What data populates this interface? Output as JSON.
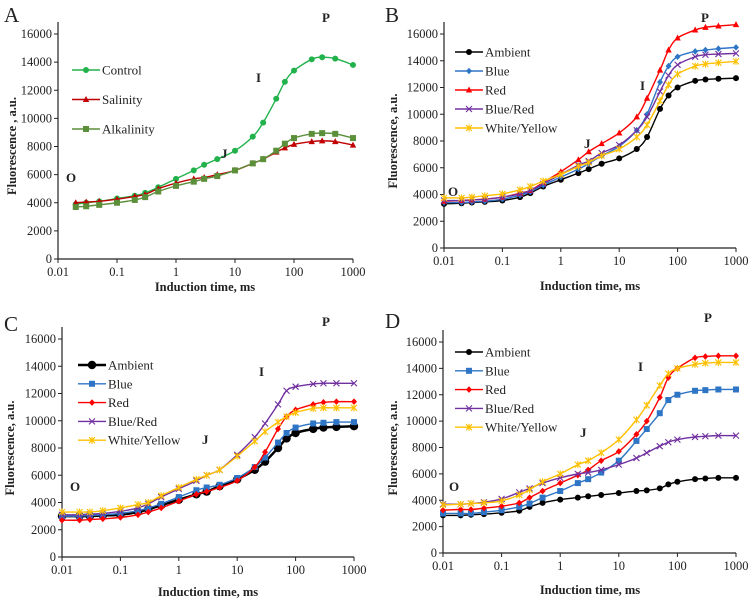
{
  "chart_data": [
    {
      "panel": "A",
      "type": "line",
      "xscale": "log",
      "xlim": [
        0.01,
        1000
      ],
      "ylim": [
        0,
        16000
      ],
      "xticks": [
        "0.01",
        "0.1",
        "1",
        "10",
        "100",
        "1000"
      ],
      "yticks": [
        "0",
        "2000",
        "4000",
        "6000",
        "8000",
        "10000",
        "12000",
        "14000",
        "16000"
      ],
      "xlabel": "Induction time, ms",
      "ylabel": "Fluorescence , a.u.",
      "phases": [
        "O",
        "J",
        "I",
        "P"
      ],
      "legend": "left",
      "x": [
        0.02,
        0.03,
        0.05,
        0.1,
        0.2,
        0.3,
        0.5,
        1,
        2,
        3,
        5,
        10,
        20,
        30,
        50,
        70,
        100,
        200,
        300,
        500,
        1000
      ],
      "series": [
        {
          "name": "Control",
          "color": "#22b24c",
          "marker": "circle",
          "values": [
            3900,
            4000,
            4100,
            4300,
            4500,
            4700,
            5100,
            5700,
            6300,
            6700,
            7100,
            7700,
            8700,
            9700,
            11400,
            12600,
            13400,
            14200,
            14350,
            14250,
            13800
          ]
        },
        {
          "name": "Salinity",
          "color": "#c00000",
          "marker": "triangle",
          "values": [
            4000,
            4050,
            4100,
            4250,
            4450,
            4600,
            5000,
            5400,
            5700,
            5800,
            6000,
            6300,
            6800,
            7100,
            7600,
            7900,
            8150,
            8350,
            8400,
            8350,
            8100
          ]
        },
        {
          "name": "Alkalinity",
          "color": "#5b8f3a",
          "marker": "square",
          "values": [
            3700,
            3750,
            3850,
            4000,
            4200,
            4400,
            4800,
            5200,
            5500,
            5700,
            5900,
            6300,
            6800,
            7100,
            7700,
            8200,
            8600,
            8900,
            8950,
            8900,
            8600
          ]
        }
      ]
    },
    {
      "panel": "B",
      "type": "line",
      "xscale": "log",
      "xlim": [
        0.01,
        1000
      ],
      "ylim": [
        0,
        16000
      ],
      "xticks": [
        "0.01",
        "0.1",
        "1",
        "10",
        "100",
        "1000"
      ],
      "yticks": [
        "0",
        "2000",
        "4000",
        "6000",
        "8000",
        "10000",
        "12000",
        "14000",
        "16000"
      ],
      "xlabel": "Induction time, ms",
      "ylabel": "Fluorescence, a.u.",
      "phases": [
        "O",
        "J",
        "I",
        "P"
      ],
      "legend": "left",
      "x": [
        0.01,
        0.02,
        0.03,
        0.05,
        0.1,
        0.2,
        0.3,
        0.5,
        1,
        2,
        3,
        5,
        10,
        20,
        30,
        50,
        70,
        100,
        200,
        300,
        500,
        1000
      ],
      "series": [
        {
          "name": "Ambient",
          "color": "#000000",
          "marker": "circle",
          "values": [
            3300,
            3350,
            3400,
            3450,
            3550,
            3800,
            4100,
            4600,
            5100,
            5600,
            5900,
            6300,
            6700,
            7400,
            8300,
            10400,
            11400,
            12000,
            12500,
            12600,
            12650,
            12700
          ]
        },
        {
          "name": "Blue",
          "color": "#2e75c6",
          "marker": "diamond",
          "values": [
            3400,
            3400,
            3450,
            3500,
            3650,
            3950,
            4200,
            4700,
            5300,
            5900,
            6300,
            6900,
            7600,
            8800,
            10000,
            12400,
            13600,
            14300,
            14700,
            14800,
            14900,
            15000
          ]
        },
        {
          "name": "Red",
          "color": "#ff0000",
          "marker": "triangle",
          "values": [
            3500,
            3550,
            3600,
            3650,
            3800,
            4100,
            4300,
            4900,
            5700,
            6600,
            7200,
            7800,
            8600,
            9800,
            11200,
            13300,
            14800,
            15700,
            16300,
            16500,
            16600,
            16700
          ]
        },
        {
          "name": "Blue/Red",
          "color": "#7030a0",
          "marker": "x",
          "values": [
            3550,
            3550,
            3600,
            3650,
            3800,
            4050,
            4300,
            4800,
            5500,
            6200,
            6500,
            7100,
            7700,
            8800,
            9800,
            11700,
            12900,
            13700,
            14300,
            14450,
            14500,
            14550
          ]
        },
        {
          "name": "White/Yellow",
          "color": "#ffc000",
          "marker": "star",
          "values": [
            3750,
            3750,
            3800,
            3900,
            4050,
            4350,
            4600,
            5000,
            5500,
            6100,
            6400,
            6900,
            7400,
            8300,
            9200,
            11000,
            12200,
            13000,
            13600,
            13750,
            13850,
            13950
          ]
        }
      ]
    },
    {
      "panel": "C",
      "type": "line",
      "xscale": "log",
      "xlim": [
        0.01,
        1000
      ],
      "ylim": [
        0,
        16000
      ],
      "xticks": [
        "0.01",
        "0.1",
        "1",
        "10",
        "100",
        "1000"
      ],
      "yticks": [
        "0",
        "2000",
        "4000",
        "6000",
        "8000",
        "10000",
        "12000",
        "14000",
        "16000"
      ],
      "xlabel": "Induction time, ms",
      "ylabel": "Fluorescence, a.u.",
      "phases": [
        "O",
        "J",
        "I",
        "P"
      ],
      "legend": "left",
      "x": [
        0.01,
        0.02,
        0.03,
        0.05,
        0.1,
        0.2,
        0.3,
        0.5,
        1,
        2,
        3,
        5,
        10,
        20,
        30,
        50,
        70,
        100,
        200,
        300,
        500,
        1000
      ],
      "series": [
        {
          "name": "Ambient",
          "color": "#000000",
          "marker": "bigcircle",
          "values": [
            3000,
            3000,
            3000,
            3050,
            3100,
            3300,
            3500,
            3800,
            4200,
            4600,
            4800,
            5200,
            5700,
            6400,
            7000,
            8000,
            8700,
            9100,
            9400,
            9500,
            9550,
            9600
          ]
        },
        {
          "name": "Blue",
          "color": "#2e75c6",
          "marker": "square",
          "values": [
            3000,
            3000,
            3050,
            3100,
            3200,
            3400,
            3600,
            3900,
            4400,
            4900,
            5100,
            5300,
            5800,
            6600,
            7300,
            8400,
            9100,
            9500,
            9800,
            9850,
            9900,
            9900
          ]
        },
        {
          "name": "Red",
          "color": "#ff0000",
          "marker": "diamond",
          "values": [
            2700,
            2700,
            2750,
            2800,
            2900,
            3100,
            3300,
            3600,
            4100,
            4600,
            4800,
            5100,
            5600,
            6600,
            7700,
            9400,
            10300,
            10800,
            11200,
            11350,
            11400,
            11400
          ]
        },
        {
          "name": "Blue/Red",
          "color": "#7030a0",
          "marker": "x",
          "values": [
            3100,
            3100,
            3150,
            3200,
            3350,
            3600,
            3900,
            4400,
            5000,
            5600,
            6000,
            6400,
            7500,
            8800,
            9800,
            11200,
            12200,
            12500,
            12700,
            12750,
            12750,
            12750
          ]
        },
        {
          "name": "White/Yellow",
          "color": "#ffc000",
          "marker": "star",
          "values": [
            3300,
            3300,
            3300,
            3400,
            3600,
            3850,
            4000,
            4500,
            5100,
            5700,
            6000,
            6400,
            7400,
            8500,
            9200,
            9900,
            10300,
            10600,
            10900,
            10950,
            10950,
            10950
          ]
        }
      ]
    },
    {
      "panel": "D",
      "type": "line",
      "xscale": "log",
      "xlim": [
        0.01,
        1000
      ],
      "ylim": [
        0,
        16000
      ],
      "xticks": [
        "0.01",
        "0.1",
        "1",
        "10",
        "100",
        "1000"
      ],
      "yticks": [
        "0",
        "2000",
        "4000",
        "6000",
        "8000",
        "10000",
        "12000",
        "14000",
        "16000"
      ],
      "xlabel": "Induction time, ms",
      "ylabel": "Fluorescence, a.u.",
      "phases": [
        "O",
        "J",
        "I",
        "P"
      ],
      "legend": "left",
      "x": [
        0.01,
        0.02,
        0.03,
        0.05,
        0.1,
        0.2,
        0.3,
        0.5,
        1,
        2,
        3,
        5,
        10,
        20,
        30,
        50,
        70,
        100,
        200,
        300,
        500,
        1000
      ],
      "series": [
        {
          "name": "Ambient",
          "color": "#000000",
          "marker": "circle",
          "values": [
            2850,
            2850,
            2900,
            2950,
            3050,
            3200,
            3500,
            3800,
            4050,
            4200,
            4300,
            4400,
            4550,
            4700,
            4750,
            4900,
            5200,
            5400,
            5600,
            5650,
            5700,
            5700
          ]
        },
        {
          "name": "Blue",
          "color": "#2e75c6",
          "marker": "square",
          "values": [
            3000,
            3000,
            3000,
            3100,
            3250,
            3500,
            3750,
            4200,
            4700,
            5300,
            5600,
            6100,
            7000,
            8500,
            9400,
            10600,
            11600,
            12000,
            12300,
            12350,
            12400,
            12400
          ]
        },
        {
          "name": "Red",
          "color": "#ff0000",
          "marker": "diamond",
          "values": [
            3250,
            3300,
            3300,
            3400,
            3550,
            3800,
            4200,
            4700,
            5300,
            5900,
            6300,
            7000,
            7700,
            9000,
            10000,
            11800,
            13300,
            14000,
            14800,
            14900,
            14950,
            14950
          ]
        },
        {
          "name": "Blue/Red",
          "color": "#7030a0",
          "marker": "x",
          "values": [
            3700,
            3700,
            3750,
            3850,
            4100,
            4600,
            4900,
            5300,
            5700,
            6000,
            6100,
            6300,
            6700,
            7200,
            7600,
            8100,
            8400,
            8600,
            8800,
            8850,
            8900,
            8900
          ]
        },
        {
          "name": "White/Yellow",
          "color": "#ffc000",
          "marker": "star",
          "values": [
            3650,
            3700,
            3750,
            3800,
            3950,
            4400,
            4800,
            5400,
            6000,
            6700,
            7000,
            7600,
            8600,
            10100,
            11200,
            12700,
            13600,
            14000,
            14300,
            14400,
            14450,
            14450
          ]
        }
      ]
    }
  ]
}
